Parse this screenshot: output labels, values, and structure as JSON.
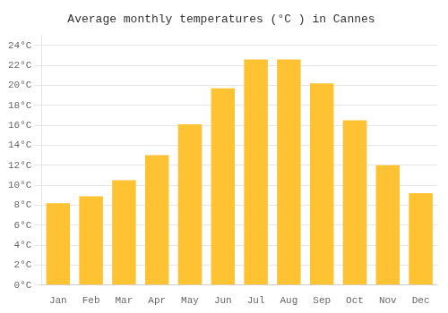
{
  "chart_data": {
    "type": "bar",
    "title": "Average monthly temperatures (°C ) in Cannes",
    "categories": [
      "Jan",
      "Feb",
      "Mar",
      "Apr",
      "May",
      "Jun",
      "Jul",
      "Aug",
      "Sep",
      "Oct",
      "Nov",
      "Dec"
    ],
    "values": [
      8.2,
      8.9,
      10.5,
      13.0,
      16.1,
      19.7,
      22.6,
      22.6,
      20.2,
      16.5,
      12.0,
      9.2
    ],
    "color": "#FFC233",
    "ylim": [
      0,
      25
    ],
    "yticks": [
      {
        "value": 0,
        "label": "0°C"
      },
      {
        "value": 2,
        "label": "2°C"
      },
      {
        "value": 4,
        "label": "4°C"
      },
      {
        "value": 6,
        "label": "6°C"
      },
      {
        "value": 8,
        "label": "8°C"
      },
      {
        "value": 10,
        "label": "10°C"
      },
      {
        "value": 12,
        "label": "12°C"
      },
      {
        "value": 14,
        "label": "14°C"
      },
      {
        "value": 16,
        "label": "16°C"
      },
      {
        "value": 18,
        "label": "18°C"
      },
      {
        "value": 20,
        "label": "20°C"
      },
      {
        "value": 22,
        "label": "22°C"
      },
      {
        "value": 24,
        "label": "24°C"
      }
    ],
    "grid": true
  }
}
